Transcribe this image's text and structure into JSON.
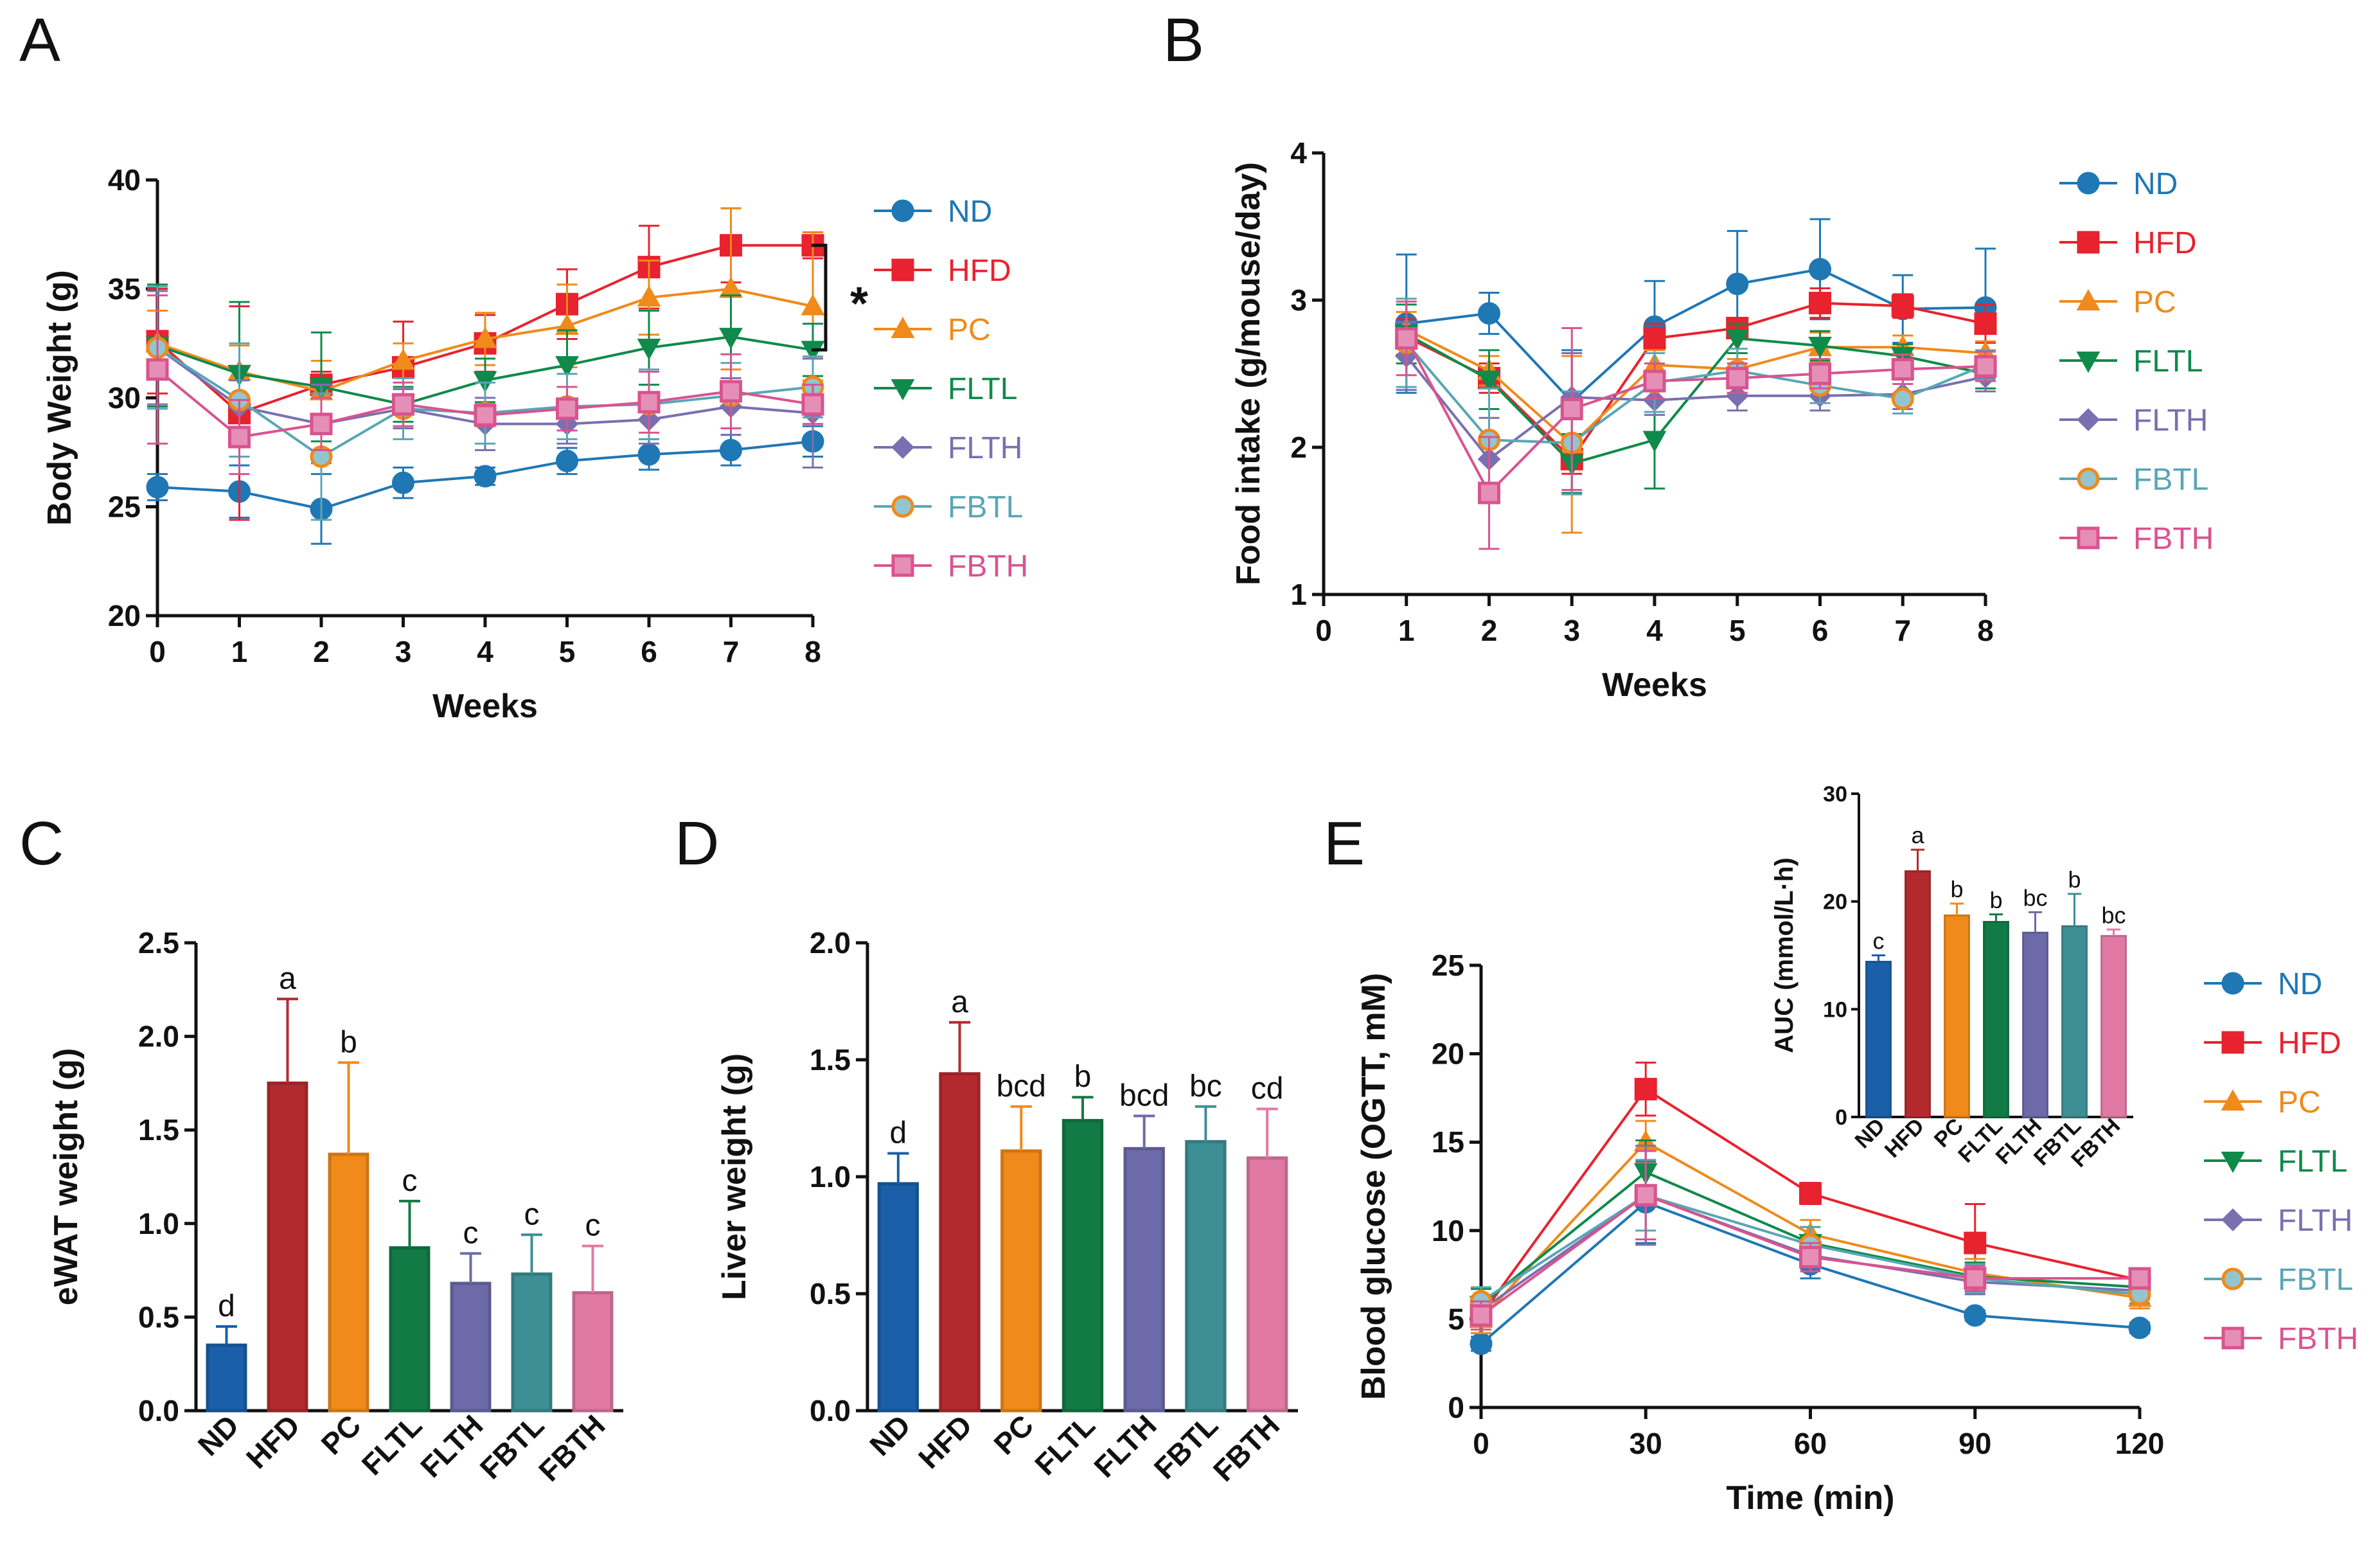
{
  "colors": {
    "ND": "#1f77b4",
    "HFD": "#e8222e",
    "PC": "#f08a1a",
    "FLTL": "#0f8a4a",
    "FLTH": "#7a6fb0",
    "FBTL": "#5aa6b4",
    "FBTH": "#d9538f",
    "ND_bar": "#1a5fa8",
    "HFD_bar": "#b32a2e",
    "PC_bar": "#f08a1a",
    "FLTL_bar": "#127a45",
    "FLTH_bar": "#6c6aa8",
    "FBTL_bar": "#3d8f95",
    "FBTH_bar": "#e07aa4"
  },
  "panels": {
    "A": "A",
    "B": "B",
    "C": "C",
    "D": "D",
    "E": "E"
  },
  "chart_data": [
    {
      "id": "A",
      "type": "line",
      "title": "",
      "xlabel": "Weeks",
      "ylabel": "Body Weight (g)",
      "xlim": [
        0,
        8
      ],
      "ylim": [
        20,
        40
      ],
      "xticks": [
        0,
        1,
        2,
        3,
        4,
        5,
        6,
        7,
        8
      ],
      "yticks": [
        20,
        25,
        30,
        35,
        40
      ],
      "x": [
        0,
        1,
        2,
        3,
        4,
        5,
        6,
        7,
        8
      ],
      "series": [
        {
          "name": "ND",
          "marker": "circle",
          "values": [
            25.9,
            25.7,
            24.9,
            26.1,
            26.4,
            27.1,
            27.4,
            27.6,
            28.0
          ],
          "err": [
            0.6,
            1.2,
            1.6,
            0.7,
            0.4,
            0.6,
            0.7,
            0.7,
            0.7
          ]
        },
        {
          "name": "HFD",
          "marker": "square",
          "values": [
            32.6,
            29.3,
            30.6,
            31.4,
            32.5,
            34.3,
            36.0,
            37.0,
            37.0
          ],
          "err": [
            2.4,
            4.9,
            0.6,
            2.1,
            1.3,
            1.6,
            1.9,
            1.7,
            0.6
          ]
        },
        {
          "name": "PC",
          "marker": "triangle-up",
          "values": [
            32.5,
            31.2,
            30.3,
            31.7,
            32.7,
            33.3,
            34.6,
            35.0,
            34.2
          ],
          "err": [
            1.5,
            1.2,
            1.4,
            0.8,
            1.2,
            1.9,
            1.7,
            3.7,
            3.4
          ]
        },
        {
          "name": "FLTL",
          "marker": "triangle-down",
          "values": [
            32.4,
            31.1,
            30.5,
            29.7,
            30.8,
            31.5,
            32.3,
            32.8,
            32.2
          ],
          "err": [
            2.8,
            3.3,
            2.5,
            0.8,
            1.0,
            1.6,
            1.7,
            1.9,
            1.2
          ]
        },
        {
          "name": "FLTH",
          "marker": "diamond",
          "values": [
            32.3,
            29.6,
            28.8,
            29.5,
            28.8,
            28.8,
            29.0,
            29.6,
            29.3
          ],
          "err": [
            2.6,
            1.2,
            1.8,
            0.9,
            1.2,
            0.9,
            1.1,
            1.3,
            2.5
          ]
        },
        {
          "name": "FBTL",
          "marker": "circle",
          "values": [
            32.3,
            29.9,
            27.3,
            29.5,
            29.3,
            29.6,
            29.7,
            30.1,
            30.5
          ],
          "err": [
            2.8,
            2.6,
            2.9,
            1.4,
            1.4,
            1.5,
            1.6,
            1.5,
            1.4
          ]
        },
        {
          "name": "FBTH",
          "marker": "square",
          "values": [
            31.3,
            28.2,
            28.8,
            29.7,
            29.2,
            29.5,
            29.8,
            30.3,
            29.7
          ],
          "err": [
            3.4,
            1.7,
            1.2,
            1.0,
            0.5,
            1.0,
            1.4,
            1.7,
            0.9
          ]
        }
      ],
      "annotation": "*"
    },
    {
      "id": "B",
      "type": "line",
      "title": "",
      "xlabel": "Weeks",
      "ylabel": "Food intake (g/mouse/day)",
      "xlim": [
        0,
        8
      ],
      "ylim": [
        1,
        4
      ],
      "xticks": [
        0,
        1,
        2,
        3,
        4,
        5,
        6,
        7,
        8
      ],
      "yticks": [
        1,
        2,
        3,
        4
      ],
      "x": [
        1,
        2,
        3,
        4,
        5,
        6,
        7,
        8
      ],
      "series": [
        {
          "name": "ND",
          "marker": "circle",
          "values": [
            2.84,
            2.91,
            2.31,
            2.82,
            3.11,
            3.21,
            2.94,
            2.95
          ],
          "err": [
            0.47,
            0.14,
            0.35,
            0.31,
            0.36,
            0.34,
            0.23,
            0.4
          ]
        },
        {
          "name": "HFD",
          "marker": "square",
          "values": [
            2.75,
            2.47,
            1.92,
            2.74,
            2.81,
            2.98,
            2.96,
            2.84
          ],
          "err": [
            0.12,
            0.1,
            0.1,
            0.1,
            0.07,
            0.1,
            0.08,
            0.13
          ]
        },
        {
          "name": "PC",
          "marker": "triangle-up",
          "values": [
            2.8,
            2.52,
            2.02,
            2.56,
            2.53,
            2.68,
            2.68,
            2.64
          ],
          "err": [
            0.12,
            0.1,
            0.6,
            0.1,
            0.07,
            0.1,
            0.08,
            0.08
          ]
        },
        {
          "name": "FLTL",
          "marker": "triangle-down",
          "values": [
            2.77,
            2.46,
            1.89,
            2.05,
            2.74,
            2.69,
            2.62,
            2.5
          ],
          "err": [
            0.2,
            0.2,
            0.2,
            0.33,
            0.1,
            0.1,
            0.08,
            0.1
          ]
        },
        {
          "name": "FLTH",
          "marker": "diamond",
          "values": [
            2.62,
            1.92,
            2.34,
            2.32,
            2.35,
            2.35,
            2.36,
            2.48
          ],
          "err": [
            0.23,
            0.28,
            0.3,
            0.1,
            0.1,
            0.1,
            0.1,
            0.1
          ]
        },
        {
          "name": "FBTL",
          "marker": "circle",
          "values": [
            2.71,
            2.05,
            2.03,
            2.44,
            2.52,
            2.42,
            2.33,
            2.56
          ],
          "err": [
            0.3,
            0.35,
            0.35,
            0.2,
            0.15,
            0.12,
            0.1,
            0.1
          ]
        },
        {
          "name": "FBTH",
          "marker": "square",
          "values": [
            2.74,
            1.69,
            2.26,
            2.45,
            2.47,
            2.5,
            2.53,
            2.55
          ],
          "err": [
            0.25,
            0.38,
            0.55,
            0.12,
            0.1,
            0.1,
            0.1,
            0.1
          ]
        }
      ]
    },
    {
      "id": "C",
      "type": "bar",
      "title": "",
      "xlabel": "",
      "ylabel": "eWAT weight (g)",
      "ylim": [
        0,
        2.5
      ],
      "yticks": [
        "0.0",
        "0.5",
        "1.0",
        "1.5",
        "2.0",
        "2.5"
      ],
      "categories": [
        "ND",
        "HFD",
        "PC",
        "FLTL",
        "FLTH",
        "FBTL",
        "FBTH"
      ],
      "values": [
        0.35,
        1.75,
        1.37,
        0.87,
        0.68,
        0.73,
        0.63
      ],
      "err": [
        0.1,
        0.45,
        0.49,
        0.25,
        0.16,
        0.21,
        0.25
      ],
      "letters": [
        "d",
        "a",
        "b",
        "c",
        "c",
        "c",
        "c"
      ]
    },
    {
      "id": "D",
      "type": "bar",
      "title": "",
      "xlabel": "",
      "ylabel": "Liver weight (g)",
      "ylim": [
        0,
        2.0
      ],
      "yticks": [
        "0.0",
        "0.5",
        "1.0",
        "1.5",
        "2.0"
      ],
      "categories": [
        "ND",
        "HFD",
        "PC",
        "FLTL",
        "FLTH",
        "FBTL",
        "FBTH"
      ],
      "values": [
        0.97,
        1.44,
        1.11,
        1.24,
        1.12,
        1.15,
        1.08
      ],
      "err": [
        0.13,
        0.22,
        0.19,
        0.1,
        0.14,
        0.15,
        0.21
      ],
      "letters": [
        "d",
        "a",
        "bcd",
        "b",
        "bcd",
        "bc",
        "cd"
      ]
    },
    {
      "id": "E",
      "type": "line",
      "title": "",
      "xlabel": "Time (min)",
      "ylabel": "Blood glucose (OGTT, mM)",
      "xlim": [
        0,
        120
      ],
      "ylim": [
        0,
        25
      ],
      "xticks": [
        0,
        30,
        60,
        90,
        120
      ],
      "yticks": [
        0,
        5,
        10,
        15,
        20,
        25
      ],
      "x": [
        0,
        30,
        60,
        90,
        120
      ],
      "series": [
        {
          "name": "ND",
          "marker": "circle",
          "values": [
            3.6,
            11.6,
            8.1,
            5.2,
            4.5
          ],
          "err": [
            0.4,
            2.3,
            0.8,
            0.3,
            0.3
          ]
        },
        {
          "name": "HFD",
          "marker": "square",
          "values": [
            5.2,
            18.0,
            12.1,
            9.3,
            7.2
          ],
          "err": [
            1.0,
            1.5,
            0.6,
            2.2,
            0.5
          ]
        },
        {
          "name": "PC",
          "marker": "triangle-up",
          "values": [
            5.0,
            15.0,
            9.8,
            7.6,
            6.2
          ],
          "err": [
            0.8,
            1.2,
            0.8,
            0.8,
            0.6
          ]
        },
        {
          "name": "FLTL",
          "marker": "triangle-down",
          "values": [
            5.8,
            13.3,
            9.3,
            7.4,
            6.8
          ],
          "err": [
            0.9,
            1.8,
            0.9,
            0.8,
            0.5
          ]
        },
        {
          "name": "FLTH",
          "marker": "diamond",
          "values": [
            5.5,
            12.0,
            8.6,
            7.1,
            6.6
          ],
          "err": [
            0.7,
            2.8,
            0.9,
            0.7,
            0.5
          ]
        },
        {
          "name": "FBTL",
          "marker": "circle",
          "values": [
            6.0,
            12.0,
            9.2,
            7.3,
            6.4
          ],
          "err": [
            0.8,
            2.0,
            1.0,
            0.8,
            0.5
          ]
        },
        {
          "name": "FBTH",
          "marker": "square",
          "values": [
            5.2,
            12.0,
            8.5,
            7.3,
            7.3
          ],
          "err": [
            0.8,
            2.5,
            0.8,
            0.7,
            0.4
          ]
        }
      ]
    },
    {
      "id": "E-inset",
      "type": "bar",
      "title": "",
      "xlabel": "",
      "ylabel": "AUC (mmol/L·h)",
      "ylim": [
        0,
        30
      ],
      "yticks": [
        "0",
        "10",
        "20",
        "30"
      ],
      "categories": [
        "ND",
        "HFD",
        "PC",
        "FLTL",
        "FLTH",
        "FBTL",
        "FBTH"
      ],
      "values": [
        14.4,
        22.8,
        18.7,
        18.1,
        17.1,
        17.7,
        16.8
      ],
      "err": [
        0.6,
        2.0,
        1.1,
        0.7,
        1.9,
        3.0,
        0.6
      ],
      "letters": [
        "c",
        "a",
        "b",
        "b",
        "bc",
        "b",
        "bc"
      ]
    }
  ]
}
